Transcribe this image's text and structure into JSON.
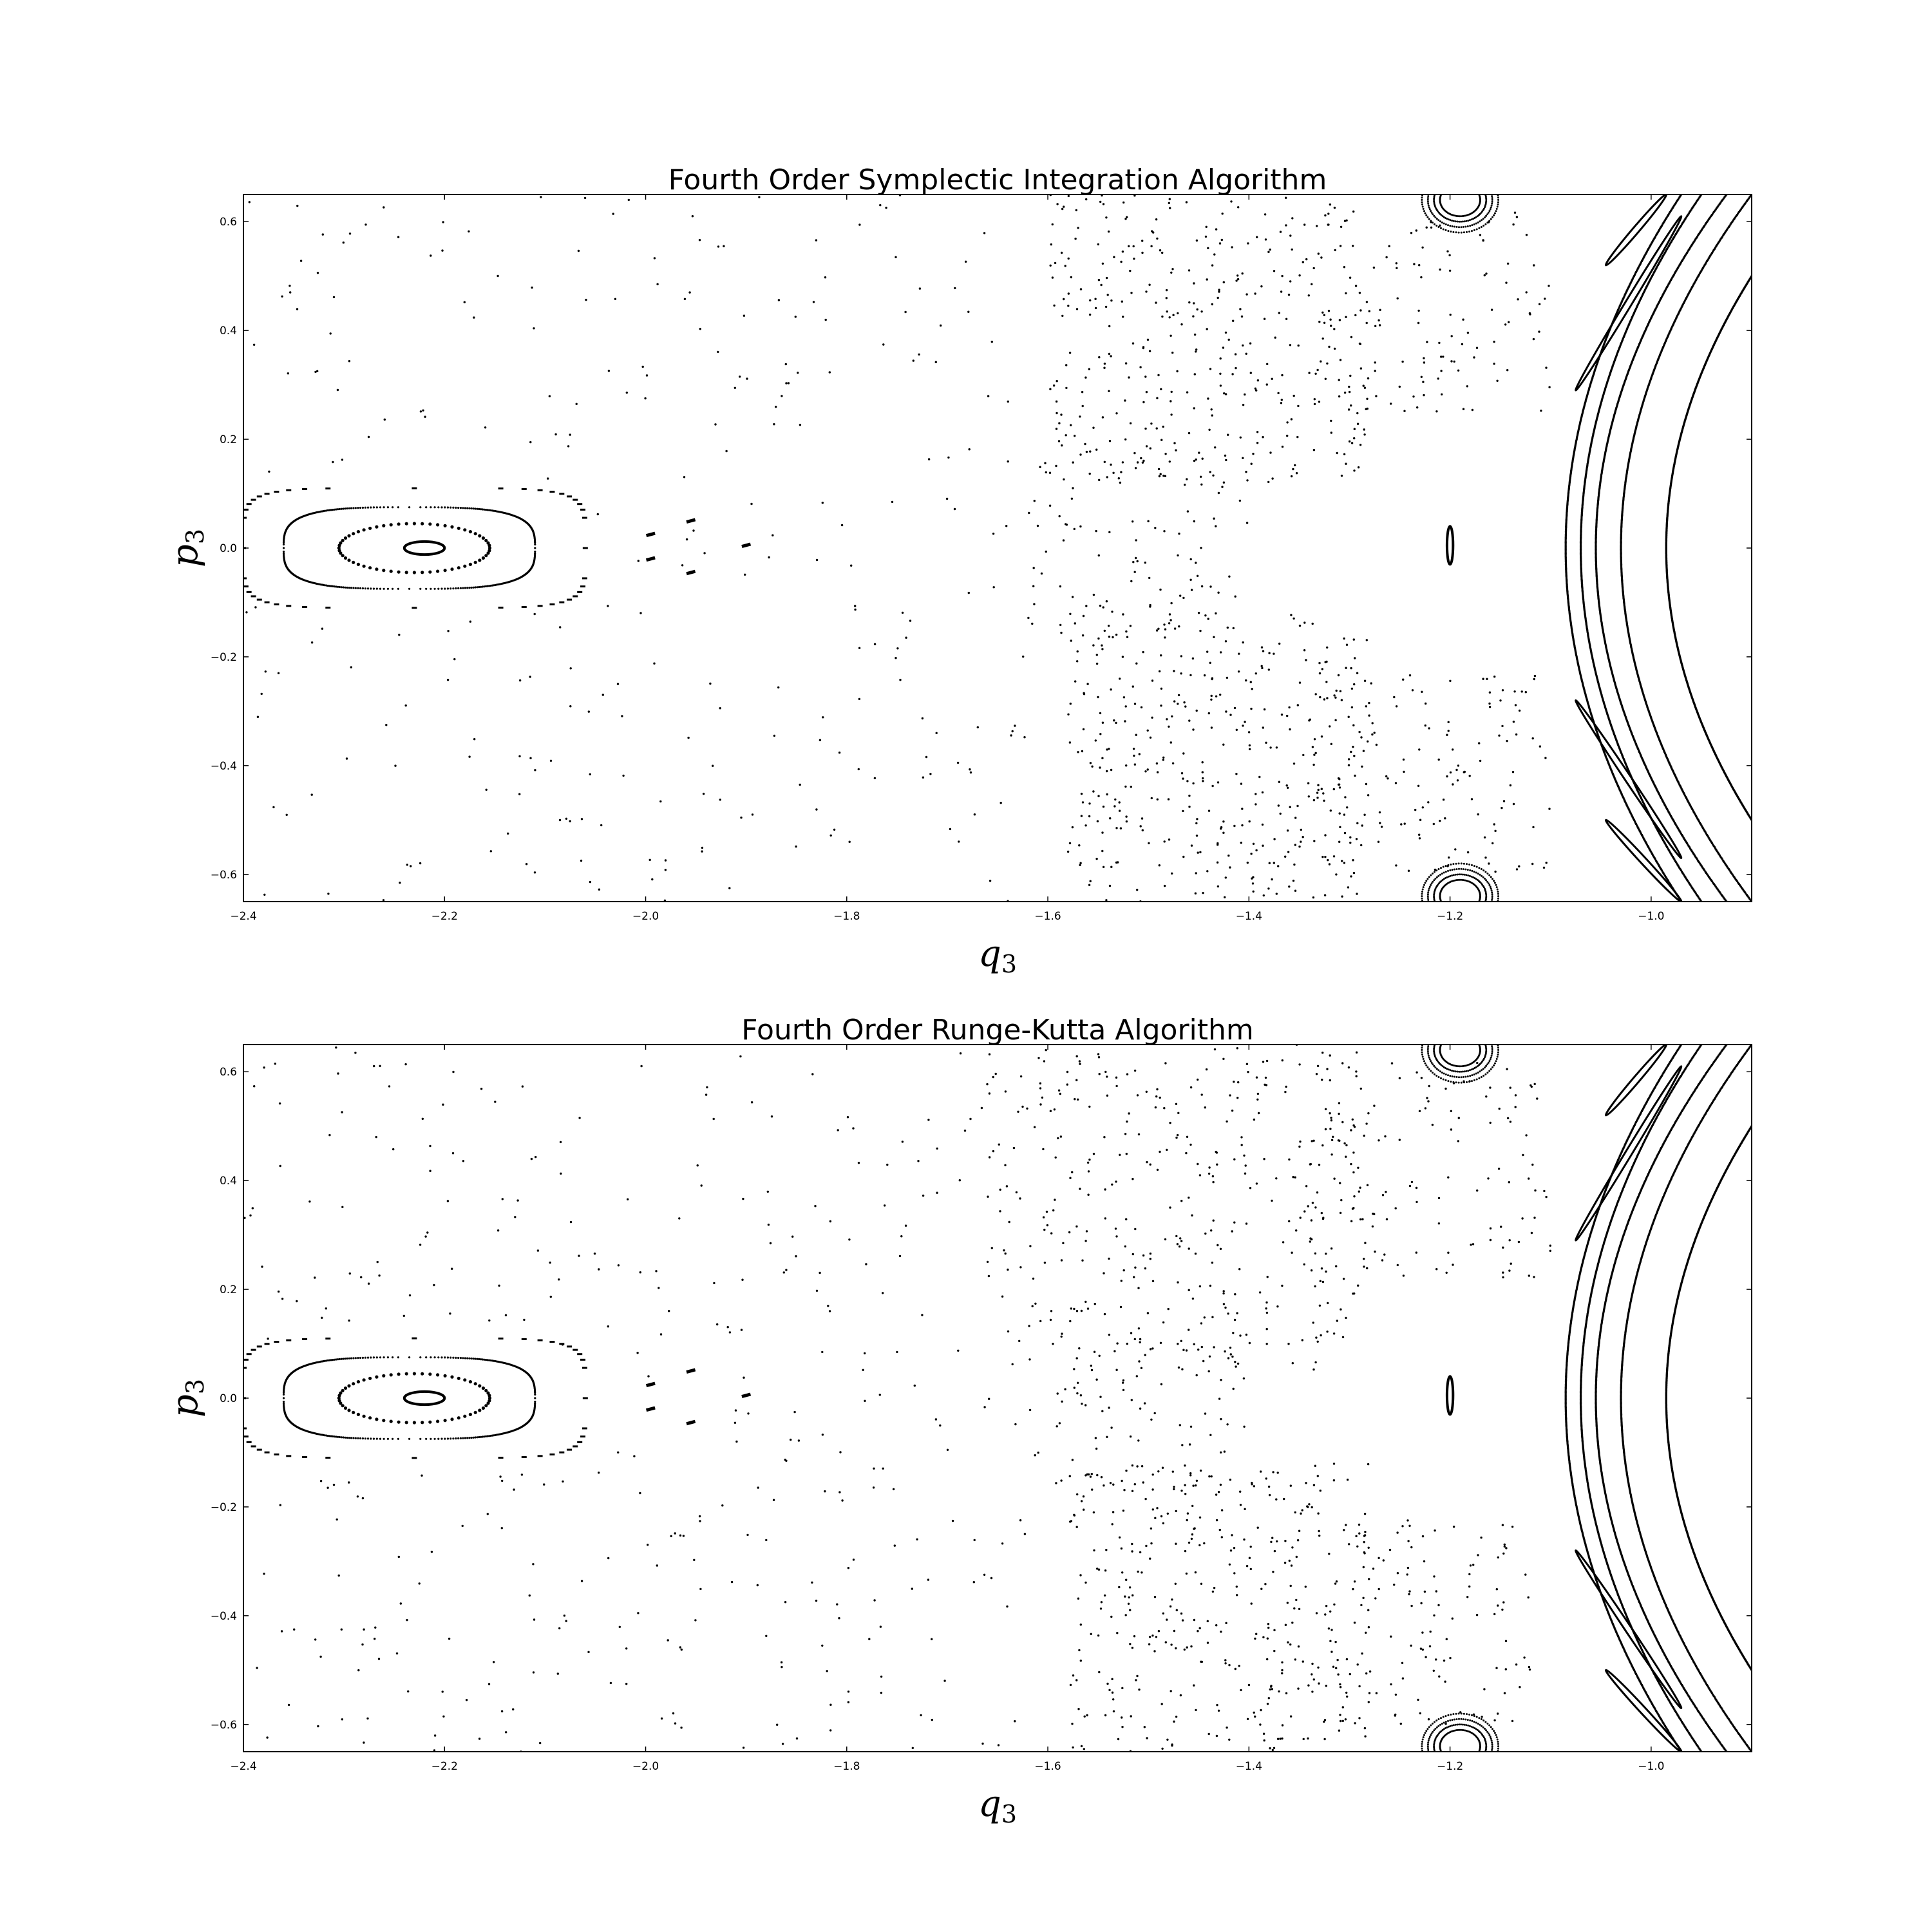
{
  "chart_data": [
    {
      "type": "scatter",
      "title": "Fourth Order Symplectic Integration Algorithm",
      "xlabel": "q",
      "xlabel_sub": "3",
      "ylabel": "p",
      "ylabel_sub": "3",
      "xlim": [
        -2.4,
        -0.9
      ],
      "ylim": [
        -0.65,
        0.65
      ],
      "x_ticks": [
        -2.4,
        -2.2,
        -2.0,
        -1.8,
        -1.6,
        -1.4,
        -1.2,
        -1.0
      ],
      "x_tick_labels": [
        "−2.4",
        "−2.2",
        "−2.0",
        "−1.8",
        "−1.6",
        "−1.4",
        "−1.2",
        "−1.0"
      ],
      "y_ticks": [
        0.6,
        0.4,
        0.2,
        0.0,
        -0.2,
        -0.4,
        -0.6
      ],
      "y_tick_labels": [
        "0.6",
        "0.4",
        "0.2",
        "0.0",
        "−0.2",
        "−0.4",
        "−0.6"
      ],
      "grid": false,
      "marker_color": "#000000",
      "seed": 7,
      "ellipses": [
        {
          "cx": -2.22,
          "cy": 0.0,
          "rx": 0.02,
          "ry": 0.012,
          "style": "solid"
        },
        {
          "cx": -2.23,
          "cy": 0.0,
          "rx": 0.075,
          "ry": 0.045,
          "style": "dotted"
        },
        {
          "cx": -2.235,
          "cy": 0.0,
          "rx": 0.125,
          "ry": 0.075,
          "style": "dense"
        },
        {
          "cx": -2.23,
          "cy": 0.0,
          "rx": 0.17,
          "ry": 0.11,
          "style": "dashed"
        },
        {
          "cx": -1.2,
          "cy": 0.005,
          "rx": 0.003,
          "ry": 0.035,
          "style": "solid"
        }
      ],
      "island_marks": [
        [
          -1.995,
          0.025
        ],
        [
          -1.995,
          -0.02
        ],
        [
          -1.955,
          0.05
        ],
        [
          -1.955,
          -0.045
        ],
        [
          -1.9,
          0.005
        ]
      ],
      "arcs": [
        {
          "vertex": -1.085,
          "end": -0.97,
          "ymax": 0.65
        },
        {
          "vertex": -1.07,
          "end": -0.95,
          "ymax": 0.65
        },
        {
          "vertex": -1.055,
          "end": -0.925,
          "ymax": 0.65
        },
        {
          "vertex": -1.03,
          "end": -0.9,
          "ymax": 0.65
        },
        {
          "vertex": -0.985,
          "end": -0.9,
          "ymax": 0.5
        }
      ],
      "lobes": [
        [
          [
            -1.075,
            0.29
          ],
          [
            -0.97,
            0.61
          ]
        ],
        [
          [
            -1.045,
            0.52
          ],
          [
            -0.985,
            0.65
          ]
        ],
        [
          [
            -1.075,
            -0.28
          ],
          [
            -0.97,
            -0.57
          ]
        ],
        [
          [
            -1.045,
            -0.5
          ],
          [
            -0.97,
            -0.65
          ]
        ]
      ],
      "corner_islands": [
        {
          "cx": -1.19,
          "cy": 0.65,
          "dir": -1
        },
        {
          "cx": -1.19,
          "cy": -0.65,
          "dir": 1
        }
      ],
      "scatter_regions": [
        {
          "xmin": -2.4,
          "xmax": -1.62,
          "ymin": -0.65,
          "ymax": 0.65,
          "count": 260,
          "avoid_islands": true
        },
        {
          "xmin": -1.6,
          "xmax": -1.28,
          "ymin": 0.12,
          "ymax": 0.65,
          "count": 360
        },
        {
          "xmin": -1.58,
          "xmax": -1.28,
          "ymin": -0.65,
          "ymax": -0.12,
          "count": 380
        },
        {
          "xmin": -1.34,
          "xmax": -1.1,
          "ymin": 0.25,
          "ymax": 0.62,
          "count": 120
        },
        {
          "xmin": -1.32,
          "xmax": -1.1,
          "ymin": -0.6,
          "ymax": -0.22,
          "count": 130
        },
        {
          "xmin": -1.62,
          "xmax": -1.4,
          "ymin": -0.18,
          "ymax": 0.18,
          "count": 110
        }
      ]
    },
    {
      "type": "scatter",
      "title": "Fourth Order Runge-Kutta Algorithm",
      "xlabel": "q",
      "xlabel_sub": "3",
      "ylabel": "p",
      "ylabel_sub": "3",
      "xlim": [
        -2.4,
        -0.9
      ],
      "ylim": [
        -0.65,
        0.65
      ],
      "x_ticks": [
        -2.4,
        -2.2,
        -2.0,
        -1.8,
        -1.6,
        -1.4,
        -1.2,
        -1.0
      ],
      "x_tick_labels": [
        "−2.4",
        "−2.2",
        "−2.0",
        "−1.8",
        "−1.6",
        "−1.4",
        "−1.2",
        "−1.0"
      ],
      "y_ticks": [
        0.6,
        0.4,
        0.2,
        0.0,
        -0.2,
        -0.4,
        -0.6
      ],
      "y_tick_labels": [
        "0.6",
        "0.4",
        "0.2",
        "0.0",
        "−0.2",
        "−0.4",
        "−0.6"
      ],
      "grid": false,
      "marker_color": "#000000",
      "seed": 19,
      "ellipses": [
        {
          "cx": -2.22,
          "cy": 0.0,
          "rx": 0.02,
          "ry": 0.012,
          "style": "solid"
        },
        {
          "cx": -2.23,
          "cy": 0.0,
          "rx": 0.075,
          "ry": 0.045,
          "style": "dotted"
        },
        {
          "cx": -2.235,
          "cy": 0.0,
          "rx": 0.125,
          "ry": 0.075,
          "style": "dense"
        },
        {
          "cx": -2.23,
          "cy": 0.0,
          "rx": 0.17,
          "ry": 0.11,
          "style": "dashed"
        },
        {
          "cx": -1.2,
          "cy": 0.005,
          "rx": 0.003,
          "ry": 0.035,
          "style": "solid"
        }
      ],
      "island_marks": [
        [
          -1.995,
          0.025
        ],
        [
          -1.995,
          -0.02
        ],
        [
          -1.955,
          0.05
        ],
        [
          -1.955,
          -0.045
        ],
        [
          -1.9,
          0.005
        ]
      ],
      "arcs": [
        {
          "vertex": -1.085,
          "end": -0.97,
          "ymax": 0.65
        },
        {
          "vertex": -1.07,
          "end": -0.95,
          "ymax": 0.65
        },
        {
          "vertex": -1.055,
          "end": -0.925,
          "ymax": 0.65
        },
        {
          "vertex": -1.03,
          "end": -0.9,
          "ymax": 0.65
        },
        {
          "vertex": -0.985,
          "end": -0.9,
          "ymax": 0.5
        }
      ],
      "lobes": [
        [
          [
            -1.075,
            0.29
          ],
          [
            -0.97,
            0.61
          ]
        ],
        [
          [
            -1.045,
            0.52
          ],
          [
            -0.985,
            0.65
          ]
        ],
        [
          [
            -1.075,
            -0.28
          ],
          [
            -0.97,
            -0.57
          ]
        ],
        [
          [
            -1.045,
            -0.5
          ],
          [
            -0.97,
            -0.65
          ]
        ]
      ],
      "corner_islands": [
        {
          "cx": -1.19,
          "cy": 0.65,
          "dir": -1
        },
        {
          "cx": -1.19,
          "cy": -0.65,
          "dir": 1
        }
      ],
      "scatter_regions": [
        {
          "xmin": -2.4,
          "xmax": -1.62,
          "ymin": -0.65,
          "ymax": 0.65,
          "count": 330,
          "avoid_islands": true
        },
        {
          "xmin": -1.66,
          "xmax": -1.28,
          "ymin": 0.05,
          "ymax": 0.65,
          "count": 360
        },
        {
          "xmin": -1.58,
          "xmax": -1.28,
          "ymin": -0.65,
          "ymax": -0.12,
          "count": 360
        },
        {
          "xmin": -1.34,
          "xmax": -1.1,
          "ymin": 0.22,
          "ymax": 0.62,
          "count": 120
        },
        {
          "xmin": -1.32,
          "xmax": -1.12,
          "ymin": -0.6,
          "ymax": -0.22,
          "count": 120
        },
        {
          "xmin": -1.62,
          "xmax": -1.4,
          "ymin": -0.18,
          "ymax": 0.18,
          "count": 110
        }
      ]
    }
  ]
}
